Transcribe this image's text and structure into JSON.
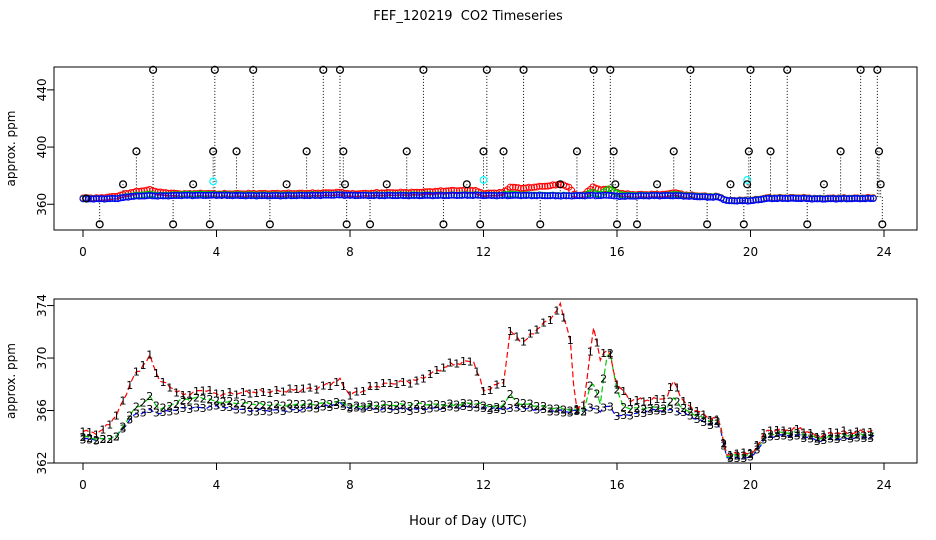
{
  "title": "FEF_120219  CO2 Timeseries",
  "xlabel": "Hour of Day (UTC)",
  "colors": {
    "black": "#000000",
    "red": "#ff0000",
    "green": "#00cc00",
    "blue": "#0000ff",
    "cyan": "#00ffff"
  },
  "chart_data": [
    {
      "type": "scatter",
      "ylabel": "approx. ppm",
      "xlim": [
        0,
        24
      ],
      "ylim": [
        342,
        456
      ],
      "xticks": [
        0,
        4,
        8,
        12,
        16,
        20,
        24
      ],
      "yticks": [
        360,
        400,
        440
      ],
      "grid": false,
      "black_cycle": [
        346,
        364,
        374,
        397,
        454,
        364,
        346,
        364,
        374,
        454
      ],
      "black_hours": [
        0.05,
        0.2,
        0.35,
        0.5,
        0.65,
        0.8,
        0.95,
        1.1,
        1.25,
        1.4,
        1.55,
        1.7,
        1.85,
        2.0,
        2.15,
        2.3,
        2.45,
        2.6,
        2.75,
        2.9,
        3.05,
        3.2,
        3.35,
        3.5,
        3.65,
        3.8,
        3.95,
        4.1,
        4.25,
        4.4,
        4.55,
        4.7,
        4.85,
        5.0,
        5.15,
        5.3,
        5.45,
        5.6,
        5.75,
        5.9,
        6.05,
        6.2,
        6.35,
        6.5,
        6.65,
        6.8,
        6.95,
        7.1,
        7.25,
        7.4,
        7.55,
        7.7,
        7.85,
        8.0,
        8.15,
        8.3,
        8.45,
        8.6,
        8.75,
        8.9,
        9.05,
        9.2,
        9.35,
        9.5,
        9.65,
        9.8,
        9.95,
        10.1,
        10.25,
        10.4,
        10.55,
        10.7,
        10.85,
        11.0,
        11.15,
        11.3,
        11.45,
        11.6,
        11.75,
        11.9,
        12.05,
        12.2,
        12.35,
        12.5,
        12.65,
        12.8,
        12.95,
        13.1,
        13.25,
        13.4,
        13.55,
        13.7,
        13.85,
        14.0,
        14.15,
        14.3,
        14.45,
        14.6,
        14.75,
        14.9,
        15.05,
        15.2,
        15.35,
        15.5,
        15.65,
        15.8,
        15.95,
        16.1,
        16.25,
        16.4,
        16.55,
        16.7,
        16.85,
        17.0,
        17.15,
        17.3,
        17.45,
        17.6,
        17.75,
        17.9,
        18.05,
        18.2,
        18.35,
        18.5,
        18.65,
        18.8,
        18.95,
        19.1,
        19.25,
        19.4,
        19.55,
        19.7,
        19.85,
        20.0,
        20.15,
        20.3,
        20.45,
        20.6,
        20.75,
        20.9,
        21.05,
        21.2,
        21.35,
        21.5,
        21.65,
        21.8,
        21.95,
        22.1,
        22.25,
        22.4,
        22.55,
        22.7,
        22.85,
        23.0,
        23.15,
        23.3,
        23.45,
        23.6,
        23.75,
        23.9
      ],
      "series": [
        {
          "color": "black",
          "marker": "o",
          "points": [
            [
              0.1,
              364
            ],
            [
              0.5,
              346
            ],
            [
              1.2,
              374
            ],
            [
              1.6,
              397
            ],
            [
              2.1,
              454
            ],
            [
              2.7,
              346
            ],
            [
              3.3,
              374
            ],
            [
              3.8,
              346
            ],
            [
              3.9,
              397
            ],
            [
              3.95,
              454
            ],
            [
              4.6,
              397
            ],
            [
              5.1,
              454
            ],
            [
              5.6,
              346
            ],
            [
              6.1,
              374
            ],
            [
              6.7,
              397
            ],
            [
              7.2,
              454
            ],
            [
              7.7,
              454
            ],
            [
              7.8,
              397
            ],
            [
              7.85,
              374
            ],
            [
              7.9,
              346
            ],
            [
              8.6,
              346
            ],
            [
              9.1,
              374
            ],
            [
              9.7,
              397
            ],
            [
              10.2,
              454
            ],
            [
              10.8,
              346
            ],
            [
              11.5,
              374
            ],
            [
              11.9,
              346
            ],
            [
              12.0,
              397
            ],
            [
              12.1,
              454
            ],
            [
              12.6,
              397
            ],
            [
              13.2,
              454
            ],
            [
              13.7,
              346
            ],
            [
              14.3,
              374
            ],
            [
              14.8,
              397
            ],
            [
              15.3,
              454
            ],
            [
              15.8,
              454
            ],
            [
              15.9,
              397
            ],
            [
              15.95,
              374
            ],
            [
              16.0,
              346
            ],
            [
              16.6,
              346
            ],
            [
              17.2,
              374
            ],
            [
              17.7,
              397
            ],
            [
              18.2,
              454
            ],
            [
              18.7,
              346
            ],
            [
              19.4,
              374
            ],
            [
              19.8,
              346
            ],
            [
              19.9,
              374
            ],
            [
              19.95,
              397
            ],
            [
              20.0,
              454
            ],
            [
              20.6,
              397
            ],
            [
              21.1,
              454
            ],
            [
              21.7,
              346
            ],
            [
              22.2,
              374
            ],
            [
              22.7,
              397
            ],
            [
              23.3,
              454
            ],
            [
              23.8,
              454
            ],
            [
              23.85,
              397
            ],
            [
              23.9,
              374
            ],
            [
              23.95,
              346
            ]
          ]
        },
        {
          "color": "red",
          "marker": "o",
          "label": "1"
        },
        {
          "color": "green",
          "marker": "o",
          "label": "2"
        },
        {
          "color": "blue",
          "marker": "o",
          "label": "3"
        },
        {
          "color": "cyan",
          "marker": "o",
          "points": [
            [
              3.9,
              376
            ],
            [
              12.0,
              377
            ],
            [
              19.9,
              377
            ]
          ]
        }
      ]
    },
    {
      "type": "line",
      "ylabel": "approx. ppm",
      "xlim": [
        0,
        24
      ],
      "ylim": [
        362,
        374.5
      ],
      "xticks": [
        0,
        4,
        8,
        12,
        16,
        20,
        24
      ],
      "yticks": [
        362,
        366,
        370,
        374
      ],
      "grid": false,
      "series": [
        {
          "name": "1",
          "color": "red",
          "marker": "1",
          "points": [
            [
              0,
              364.4
            ],
            [
              0.5,
              364.3
            ],
            [
              1,
              365.6
            ],
            [
              1.5,
              368.5
            ],
            [
              2,
              370.1
            ],
            [
              2.3,
              368.3
            ],
            [
              3,
              367.2
            ],
            [
              3.7,
              367.6
            ],
            [
              4,
              367.2
            ],
            [
              5,
              367.4
            ],
            [
              6,
              367.5
            ],
            [
              7,
              367.7
            ],
            [
              7.7,
              368.3
            ],
            [
              8,
              367.2
            ],
            [
              9,
              368
            ],
            [
              10,
              368.3
            ],
            [
              11,
              369.5
            ],
            [
              11.7,
              369.8
            ],
            [
              12,
              367.5
            ],
            [
              12.6,
              368.2
            ],
            [
              12.8,
              372
            ],
            [
              13.2,
              371.2
            ],
            [
              13.6,
              372.2
            ],
            [
              14,
              373
            ],
            [
              14.3,
              374
            ],
            [
              14.6,
              371.5
            ],
            [
              14.75,
              366
            ],
            [
              15,
              366.5
            ],
            [
              15.3,
              372.3
            ],
            [
              15.5,
              370
            ],
            [
              15.75,
              370.7
            ],
            [
              16,
              368
            ],
            [
              16.4,
              366.8
            ],
            [
              17,
              366.8
            ],
            [
              17.5,
              367
            ],
            [
              17.7,
              368.3
            ],
            [
              18,
              366.6
            ],
            [
              18.7,
              365.5
            ],
            [
              19.05,
              365.3
            ],
            [
              19.3,
              362.6
            ],
            [
              19.8,
              362.8
            ],
            [
              20,
              362.6
            ],
            [
              20.5,
              364.5
            ],
            [
              21,
              364.5
            ],
            [
              21.5,
              364.6
            ],
            [
              22,
              364
            ],
            [
              22.5,
              364.3
            ],
            [
              23,
              364.3
            ],
            [
              23.7,
              364.5
            ]
          ]
        },
        {
          "name": "2",
          "color": "green",
          "marker": "2",
          "points": [
            [
              0,
              364
            ],
            [
              0.5,
              363.8
            ],
            [
              1,
              364
            ],
            [
              1.5,
              366
            ],
            [
              2,
              367
            ],
            [
              2.3,
              366.1
            ],
            [
              3,
              366.8
            ],
            [
              3.5,
              367
            ],
            [
              4,
              366.7
            ],
            [
              5,
              366.5
            ],
            [
              6,
              366.4
            ],
            [
              7,
              366.5
            ],
            [
              7.7,
              366.7
            ],
            [
              8,
              366.3
            ],
            [
              9,
              366.4
            ],
            [
              10,
              366.5
            ],
            [
              11,
              366.4
            ],
            [
              11.7,
              366.6
            ],
            [
              12,
              366.4
            ],
            [
              12.5,
              366.2
            ],
            [
              12.8,
              367.2
            ],
            [
              13,
              366.6
            ],
            [
              13.5,
              366.4
            ],
            [
              14,
              366.2
            ],
            [
              14.5,
              366.1
            ],
            [
              15,
              366
            ],
            [
              15.25,
              368.3
            ],
            [
              15.5,
              366.6
            ],
            [
              15.75,
              371
            ],
            [
              16,
              367.6
            ],
            [
              16.2,
              366.2
            ],
            [
              17,
              366.2
            ],
            [
              17.5,
              366.2
            ],
            [
              17.7,
              367
            ],
            [
              18,
              366.1
            ],
            [
              18.7,
              365.3
            ],
            [
              19.05,
              365.2
            ],
            [
              19.3,
              362.5
            ],
            [
              19.8,
              362.6
            ],
            [
              20,
              362.6
            ],
            [
              20.5,
              364.2
            ],
            [
              21,
              364.3
            ],
            [
              21.5,
              364.3
            ],
            [
              22,
              363.9
            ],
            [
              22.5,
              364
            ],
            [
              23,
              364.1
            ],
            [
              23.7,
              364.2
            ]
          ]
        },
        {
          "name": "3",
          "color": "blue",
          "marker": "3",
          "points": [
            [
              0,
              363.8
            ],
            [
              0.5,
              363.8
            ],
            [
              1,
              364
            ],
            [
              1.5,
              365.6
            ],
            [
              2,
              366
            ],
            [
              2.3,
              365.8
            ],
            [
              3,
              366.2
            ],
            [
              3.5,
              366.2
            ],
            [
              4,
              366.3
            ],
            [
              5,
              366
            ],
            [
              6,
              366
            ],
            [
              7,
              366.2
            ],
            [
              7.7,
              366.5
            ],
            [
              8,
              366.2
            ],
            [
              9,
              366.1
            ],
            [
              10,
              366.1
            ],
            [
              11,
              366.2
            ],
            [
              11.7,
              366.3
            ],
            [
              12,
              366.2
            ],
            [
              12.5,
              366.1
            ],
            [
              13,
              366.2
            ],
            [
              13.5,
              366.1
            ],
            [
              14,
              366
            ],
            [
              14.5,
              365.9
            ],
            [
              15,
              366
            ],
            [
              15.25,
              366.2
            ],
            [
              15.5,
              366
            ],
            [
              15.75,
              366.4
            ],
            [
              16,
              365.6
            ],
            [
              16.2,
              365.6
            ],
            [
              17,
              366
            ],
            [
              17.5,
              366
            ],
            [
              17.7,
              366
            ],
            [
              18,
              365.8
            ],
            [
              18.7,
              365
            ],
            [
              19.05,
              365
            ],
            [
              19.3,
              362.4
            ],
            [
              19.8,
              362.4
            ],
            [
              20,
              362.4
            ],
            [
              20.5,
              364
            ],
            [
              21,
              364.1
            ],
            [
              21.5,
              364.1
            ],
            [
              22,
              363.7
            ],
            [
              22.5,
              363.8
            ],
            [
              23,
              363.9
            ],
            [
              23.7,
              364
            ]
          ]
        }
      ]
    }
  ]
}
